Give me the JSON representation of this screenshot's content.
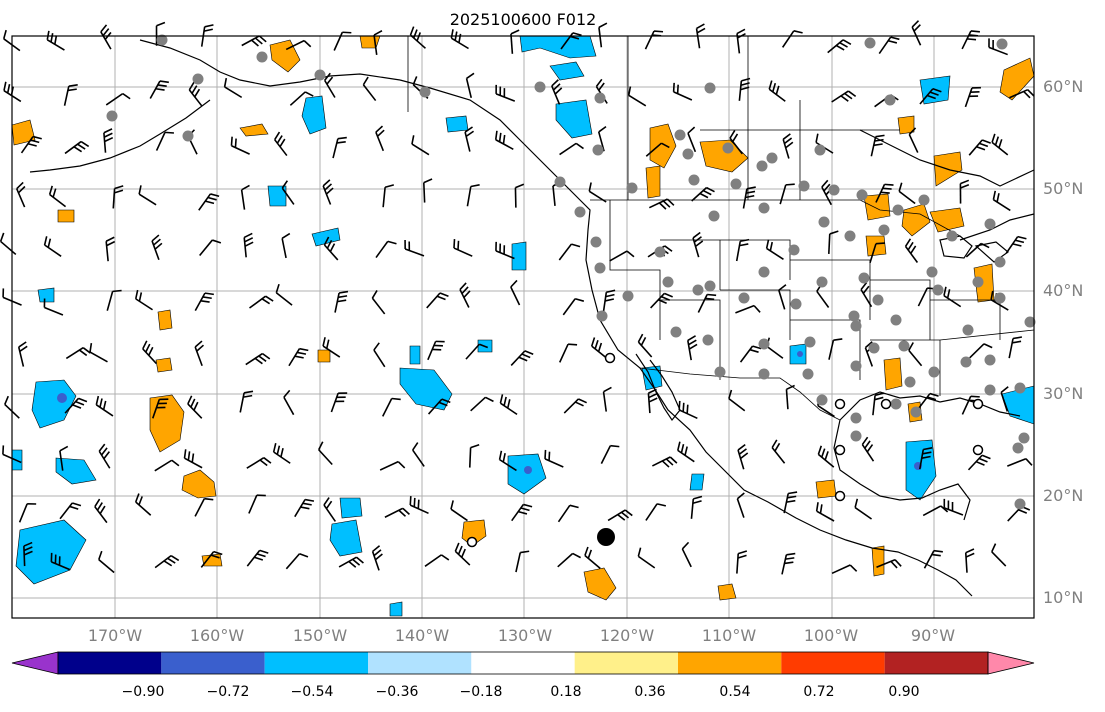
{
  "title": "2025100600 F012",
  "lon_labels": [
    "170°W",
    "160°W",
    "150°W",
    "140°W",
    "130°W",
    "120°W",
    "110°W",
    "100°W",
    "90°W"
  ],
  "lat_labels": [
    "60°N",
    "50°N",
    "40°N",
    "30°N",
    "20°N",
    "10°N"
  ],
  "colorbar": {
    "ticks": [
      "−0.90",
      "−0.72",
      "−0.54",
      "−0.36",
      "−0.18",
      "0.18",
      "0.36",
      "0.54",
      "0.72",
      "0.90"
    ],
    "colors": [
      "#9933cc",
      "#00008b",
      "#3a5fcd",
      "#00bfff",
      "#b0e2ff",
      "#ffffff",
      "#fff08a",
      "#ffa500",
      "#ff3c00",
      "#b22222",
      "#ff88aa"
    ]
  },
  "colors": {
    "positive_fill": "#ffa500",
    "positive_edge": "#ffe680",
    "negative_fill": "#00bfff",
    "negative_core": "#3a5fcd",
    "station_marker": "#808080",
    "grid": "#b0b0b0"
  }
}
